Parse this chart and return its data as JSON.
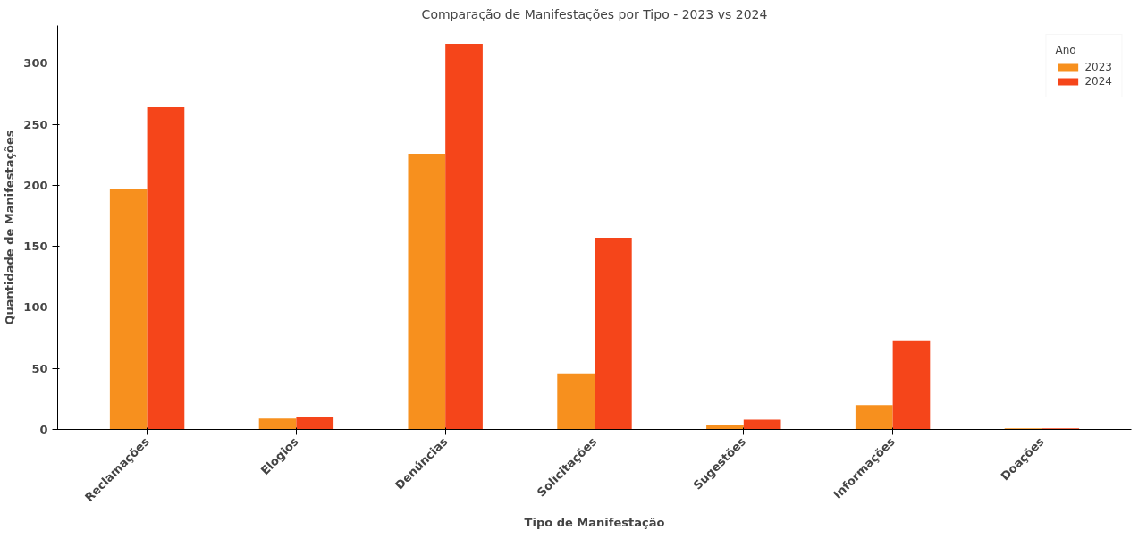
{
  "chart_data": {
    "type": "bar",
    "title": "Comparação de Manifestações por Tipo - 2023 vs 2024",
    "xlabel": "Tipo de Manifestação",
    "ylabel": "Quantidade de Manifestações",
    "legend_title": "Ano",
    "categories": [
      "Reclamações",
      "Elogios",
      "Denúncias",
      "Solicitações",
      "Sugestões",
      "Informações",
      "Doações"
    ],
    "series": [
      {
        "name": "2023",
        "color": "#f7901e",
        "values": [
          197,
          9,
          226,
          46,
          4,
          20,
          1
        ]
      },
      {
        "name": "2024",
        "color": "#f5451a",
        "values": [
          264,
          10,
          316,
          157,
          8,
          73,
          1
        ]
      }
    ],
    "ylim": [
      0,
      331
    ],
    "yticks": [
      0,
      50,
      100,
      150,
      200,
      250,
      300
    ],
    "grid": false,
    "legend": "top right"
  }
}
